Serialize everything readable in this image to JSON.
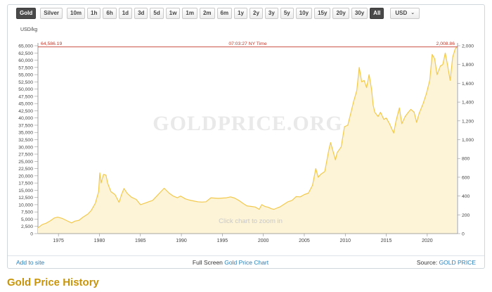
{
  "toolbar": {
    "metals": [
      {
        "label": "Gold",
        "active": true
      },
      {
        "label": "Silver",
        "active": false
      }
    ],
    "ranges": [
      "10m",
      "1h",
      "6h",
      "1d",
      "3d",
      "5d",
      "1w",
      "1m",
      "2m",
      "6m",
      "1y",
      "2y",
      "3y",
      "5y",
      "10y",
      "15y",
      "20y",
      "30y",
      "All"
    ],
    "active_range": "All",
    "currency": "USD",
    "currency_icon": "chevron-down-icon"
  },
  "chart_data": {
    "type": "area",
    "y_unit_label": "USD/kg",
    "watermark": "GOLDPRICE.ORG",
    "hint": "Click chart to zoom in",
    "high_left_label": "64,586.19",
    "high_right_label": "2,008.86",
    "high_time_label": "07:03:27 NY Time",
    "x_range": [
      1972.5,
      2023.7
    ],
    "xticks": [
      1975,
      1980,
      1985,
      1990,
      1995,
      2000,
      2005,
      2010,
      2015,
      2020
    ],
    "y_left_range": [
      0,
      65000
    ],
    "y_left_ticks": [
      "0",
      "2,500",
      "5,000",
      "7,500",
      "10,000",
      "12,500",
      "15,000",
      "17,500",
      "20,000",
      "22,500",
      "25,000",
      "27,500",
      "30,000",
      "32,500",
      "35,000",
      "37,500",
      "40,000",
      "42,500",
      "45,000",
      "47,500",
      "50,000",
      "52,500",
      "55,000",
      "57,500",
      "60,000",
      "62,500",
      "65,000"
    ],
    "y_right_range": [
      0,
      2000
    ],
    "y_right_ticks": [
      "0",
      "200",
      "400",
      "600",
      "800",
      "1,000",
      "1,200",
      "1,400",
      "1,600",
      "1,800",
      "2,000"
    ],
    "series": [
      {
        "unit": "USD/kg",
        "color": "#f2c94c",
        "fill": "#fdf4d8",
        "points": [
          [
            1972.5,
            2000
          ],
          [
            1973.0,
            3100
          ],
          [
            1973.5,
            3600
          ],
          [
            1974.0,
            4400
          ],
          [
            1974.5,
            5400
          ],
          [
            1974.9,
            5700
          ],
          [
            1975.5,
            5200
          ],
          [
            1976.0,
            4500
          ],
          [
            1976.6,
            3700
          ],
          [
            1977.0,
            4300
          ],
          [
            1977.5,
            4600
          ],
          [
            1978.0,
            5700
          ],
          [
            1978.6,
            6800
          ],
          [
            1979.0,
            8000
          ],
          [
            1979.5,
            10500
          ],
          [
            1979.9,
            14500
          ],
          [
            1980.05,
            21000
          ],
          [
            1980.2,
            17500
          ],
          [
            1980.5,
            20500
          ],
          [
            1980.8,
            20200
          ],
          [
            1981.0,
            17500
          ],
          [
            1981.4,
            14500
          ],
          [
            1981.9,
            13500
          ],
          [
            1982.4,
            10800
          ],
          [
            1982.7,
            13500
          ],
          [
            1983.0,
            15600
          ],
          [
            1983.4,
            13900
          ],
          [
            1983.9,
            12600
          ],
          [
            1984.5,
            11800
          ],
          [
            1985.0,
            10000
          ],
          [
            1985.5,
            10500
          ],
          [
            1986.0,
            11000
          ],
          [
            1986.5,
            11500
          ],
          [
            1987.0,
            13000
          ],
          [
            1987.5,
            14500
          ],
          [
            1987.9,
            15700
          ],
          [
            1988.5,
            14000
          ],
          [
            1989.0,
            13000
          ],
          [
            1989.5,
            12400
          ],
          [
            1989.9,
            13000
          ],
          [
            1990.5,
            12000
          ],
          [
            1991.0,
            11600
          ],
          [
            1991.5,
            11300
          ],
          [
            1992.0,
            11000
          ],
          [
            1992.5,
            10900
          ],
          [
            1993.0,
            11000
          ],
          [
            1993.6,
            12400
          ],
          [
            1994.0,
            12300
          ],
          [
            1994.5,
            12200
          ],
          [
            1995.0,
            12300
          ],
          [
            1995.5,
            12400
          ],
          [
            1996.0,
            12700
          ],
          [
            1996.5,
            12300
          ],
          [
            1997.0,
            11500
          ],
          [
            1997.5,
            10500
          ],
          [
            1998.0,
            9600
          ],
          [
            1998.5,
            9400
          ],
          [
            1999.0,
            9200
          ],
          [
            1999.5,
            8400
          ],
          [
            1999.8,
            10000
          ],
          [
            2000.2,
            9400
          ],
          [
            2000.6,
            9100
          ],
          [
            2001.0,
            8600
          ],
          [
            2001.3,
            8400
          ],
          [
            2001.8,
            9000
          ],
          [
            2002.0,
            9200
          ],
          [
            2002.5,
            10100
          ],
          [
            2003.0,
            11000
          ],
          [
            2003.5,
            11500
          ],
          [
            2004.0,
            12800
          ],
          [
            2004.5,
            12700
          ],
          [
            2005.0,
            13500
          ],
          [
            2005.5,
            14000
          ],
          [
            2006.0,
            16700
          ],
          [
            2006.4,
            22500
          ],
          [
            2006.7,
            19500
          ],
          [
            2007.0,
            20500
          ],
          [
            2007.5,
            21500
          ],
          [
            2008.0,
            29000
          ],
          [
            2008.2,
            31500
          ],
          [
            2008.8,
            25500
          ],
          [
            2009.0,
            28000
          ],
          [
            2009.5,
            30000
          ],
          [
            2009.9,
            37000
          ],
          [
            2010.3,
            37500
          ],
          [
            2010.7,
            42000
          ],
          [
            2011.0,
            45500
          ],
          [
            2011.4,
            49500
          ],
          [
            2011.7,
            57500
          ],
          [
            2012.0,
            52500
          ],
          [
            2012.3,
            53000
          ],
          [
            2012.6,
            50500
          ],
          [
            2012.9,
            55000
          ],
          [
            2013.2,
            50000
          ],
          [
            2013.4,
            44500
          ],
          [
            2013.6,
            42000
          ],
          [
            2014.0,
            40500
          ],
          [
            2014.3,
            42000
          ],
          [
            2014.7,
            39500
          ],
          [
            2015.0,
            40000
          ],
          [
            2015.4,
            38000
          ],
          [
            2015.9,
            34800
          ],
          [
            2016.2,
            39000
          ],
          [
            2016.6,
            43500
          ],
          [
            2016.9,
            38000
          ],
          [
            2017.3,
            40500
          ],
          [
            2017.7,
            42000
          ],
          [
            2018.0,
            43000
          ],
          [
            2018.4,
            42000
          ],
          [
            2018.7,
            38500
          ],
          [
            2019.0,
            41500
          ],
          [
            2019.5,
            45000
          ],
          [
            2019.9,
            48500
          ],
          [
            2020.3,
            53000
          ],
          [
            2020.6,
            62000
          ],
          [
            2020.9,
            60500
          ],
          [
            2021.2,
            55000
          ],
          [
            2021.6,
            58000
          ],
          [
            2021.9,
            58500
          ],
          [
            2022.2,
            62500
          ],
          [
            2022.5,
            58000
          ],
          [
            2022.8,
            53000
          ],
          [
            2023.1,
            61000
          ],
          [
            2023.4,
            63800
          ],
          [
            2023.6,
            64586
          ]
        ]
      }
    ]
  },
  "footer": {
    "add_to_site": "Add to site",
    "full_screen": "Full Screen",
    "full_screen_link": "Gold Price Chart",
    "source_label": "Source:",
    "source_link": "GOLD PRICE"
  },
  "page_title": "Gold Price History"
}
